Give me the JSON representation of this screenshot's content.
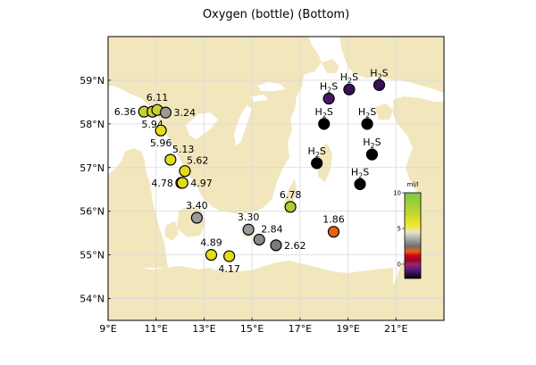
{
  "chart_data": {
    "type": "scatter",
    "title": "Oxygen (bottle) (Bottom)",
    "xlim": [
      9,
      23
    ],
    "ylim": [
      53.5,
      60
    ],
    "x_ticks": [
      {
        "value": 9,
        "label": "9°E"
      },
      {
        "value": 11,
        "label": "11°E"
      },
      {
        "value": 13,
        "label": "13°E"
      },
      {
        "value": 15,
        "label": "15°E"
      },
      {
        "value": 17,
        "label": "17°E"
      },
      {
        "value": 19,
        "label": "19°E"
      },
      {
        "value": 21,
        "label": "21°E"
      }
    ],
    "y_ticks": [
      {
        "value": 54,
        "label": "54°N"
      },
      {
        "value": 55,
        "label": "55°N"
      },
      {
        "value": 56,
        "label": "56°N"
      },
      {
        "value": 57,
        "label": "57°N"
      },
      {
        "value": 58,
        "label": "58°N"
      },
      {
        "value": 59,
        "label": "59°N"
      }
    ],
    "grid": true,
    "colors": {
      "land": "#f2e6bd",
      "sea": "#ffffff",
      "grid": "#d9d9d9"
    },
    "stations": [
      {
        "lon": 10.5,
        "lat": 58.28,
        "value": 6.36,
        "label": "6.36",
        "color": "#c8d234",
        "label_side": "left"
      },
      {
        "lon": 10.85,
        "lat": 58.28,
        "value": 5.94,
        "label": "5.94",
        "color": "#c8d234",
        "label_side": "below"
      },
      {
        "lon": 11.05,
        "lat": 58.32,
        "value": 6.11,
        "label": "6.11",
        "color": "#c8d234",
        "label_side": "above"
      },
      {
        "lon": 11.4,
        "lat": 58.26,
        "value": 3.24,
        "label": "3.24",
        "color": "#9a9a9a",
        "label_side": "right"
      },
      {
        "lon": 11.2,
        "lat": 57.85,
        "value": 5.96,
        "label": "5.96",
        "color": "#e2dc1c",
        "label_side": "below"
      },
      {
        "lon": 11.6,
        "lat": 57.18,
        "value": 5.13,
        "label": "5.13",
        "color": "#e2dc1c",
        "label_side": "above-right"
      },
      {
        "lon": 12.2,
        "lat": 56.92,
        "value": 5.62,
        "label": "5.62",
        "color": "#e2dc1c",
        "label_side": "above-right"
      },
      {
        "lon": 12.05,
        "lat": 56.65,
        "value": 4.78,
        "label": "4.78",
        "color": "#e2dc1c",
        "label_side": "left"
      },
      {
        "lon": 12.1,
        "lat": 56.65,
        "value": 4.97,
        "label": "4.97",
        "color": "#e2dc1c",
        "label_side": "right"
      },
      {
        "lon": 12.7,
        "lat": 55.85,
        "value": 3.4,
        "label": "3.40",
        "color": "#9a9a9a",
        "label_side": "above"
      },
      {
        "lon": 13.3,
        "lat": 55.0,
        "value": 4.89,
        "label": "4.89",
        "color": "#e2dc1c",
        "label_side": "above"
      },
      {
        "lon": 14.05,
        "lat": 54.97,
        "value": 4.17,
        "label": "4.17",
        "color": "#e2dc1c",
        "label_side": "below"
      },
      {
        "lon": 14.85,
        "lat": 55.58,
        "value": 3.3,
        "label": "3.30",
        "color": "#9a9a9a",
        "label_side": "above"
      },
      {
        "lon": 15.3,
        "lat": 55.35,
        "value": 2.84,
        "label": "2.84",
        "color": "#8a8a8a",
        "label_side": "above-right"
      },
      {
        "lon": 16.0,
        "lat": 55.22,
        "value": 2.62,
        "label": "2.62",
        "color": "#7a7a7a",
        "label_side": "right"
      },
      {
        "lon": 16.6,
        "lat": 56.1,
        "value": 6.78,
        "label": "6.78",
        "color": "#a8cf2e",
        "label_side": "above"
      },
      {
        "lon": 18.4,
        "lat": 55.53,
        "value": 1.86,
        "label": "1.86",
        "color": "#e8620e",
        "label_side": "above"
      },
      {
        "lon": 18.2,
        "lat": 58.58,
        "value": "H2S",
        "label": "H2S",
        "color": "#4a1668",
        "label_side": "above"
      },
      {
        "lon": 19.05,
        "lat": 58.79,
        "value": "H2S",
        "label": "H2S",
        "color": "#3a1058",
        "label_side": "above"
      },
      {
        "lon": 20.3,
        "lat": 58.89,
        "value": "H2S",
        "label": "H2S",
        "color": "#3a1058",
        "label_side": "above"
      },
      {
        "lon": 18.0,
        "lat": 58.0,
        "value": "H2S",
        "label": "H2S",
        "color": "#000000",
        "label_side": "above"
      },
      {
        "lon": 19.8,
        "lat": 58.0,
        "value": "H2S",
        "label": "H2S",
        "color": "#000000",
        "label_side": "above"
      },
      {
        "lon": 20.0,
        "lat": 57.3,
        "value": "H2S",
        "label": "H2S",
        "color": "#000000",
        "label_side": "above"
      },
      {
        "lon": 17.7,
        "lat": 57.1,
        "value": "H2S",
        "label": "H2S",
        "color": "#000000",
        "label_side": "above"
      },
      {
        "lon": 19.5,
        "lat": 56.62,
        "value": "H2S",
        "label": "H2S",
        "color": "#000000",
        "label_side": "above"
      }
    ],
    "colorbar": {
      "unit": "ml/l",
      "ticks": [
        {
          "value": 10,
          "label": "10"
        },
        {
          "value": 5,
          "label": "5"
        },
        {
          "value": 0,
          "label": "0"
        }
      ],
      "range": [
        -2,
        10
      ],
      "stops": [
        {
          "value": 10,
          "color": "#7ac943"
        },
        {
          "value": 7,
          "color": "#c6d72e"
        },
        {
          "value": 5.5,
          "color": "#f2e72a"
        },
        {
          "value": 4.5,
          "color": "#e5e5c8"
        },
        {
          "value": 3.5,
          "color": "#a8a8a8"
        },
        {
          "value": 2.5,
          "color": "#6e6e6e"
        },
        {
          "value": 1.8,
          "color": "#e8620e"
        },
        {
          "value": 1.2,
          "color": "#d4001a"
        },
        {
          "value": 0.5,
          "color": "#8c0a2a"
        },
        {
          "value": 0,
          "color": "#a0206e"
        },
        {
          "value": -0.8,
          "color": "#5a1a7a"
        },
        {
          "value": -1.5,
          "color": "#2a0a3a"
        },
        {
          "value": -2,
          "color": "#000000"
        }
      ]
    }
  }
}
